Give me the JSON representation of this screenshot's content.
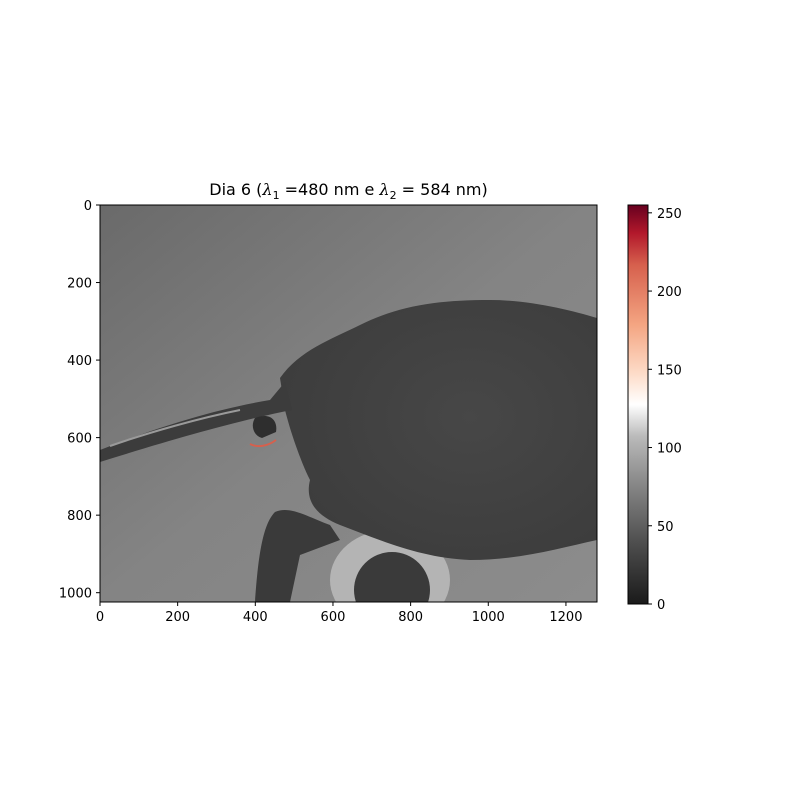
{
  "chart_data": {
    "type": "heatmap",
    "title": {
      "prefix": "Dia 6 (",
      "lambda_symbol": "λ",
      "sub1": "1",
      "mid": " =480 nm e ",
      "sub2": "2",
      "suffix": " = 584 nm)"
    },
    "image_width": 1280,
    "image_height": 1024,
    "xlim": [
      0,
      1280
    ],
    "ylim": [
      1024,
      0
    ],
    "xticks": [
      0,
      200,
      400,
      600,
      800,
      1000,
      1200
    ],
    "yticks": [
      0,
      200,
      400,
      600,
      800,
      1000
    ],
    "colorbar": {
      "colormap": "RdGy_r",
      "range": [
        0,
        255
      ],
      "ticks": [
        0,
        50,
        100,
        150,
        200,
        250
      ]
    },
    "content": "grayscale photograph of an insect (mosquito) abdomen and proboscis; small bright highlight near x≈410, y≈610"
  },
  "colors": {
    "background": "#ffffff",
    "axis": "#000000",
    "bright_region": "#a9a9a9",
    "specimen": "#4a4a4a",
    "highlight": "#d6604d"
  }
}
